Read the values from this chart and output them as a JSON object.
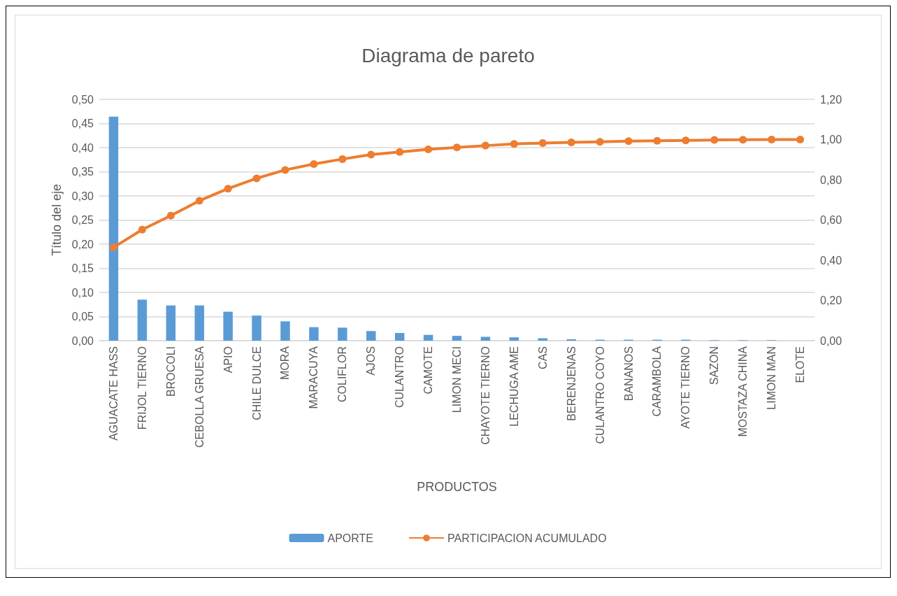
{
  "chart_data": {
    "type": "bar",
    "title": "Diagrama de pareto",
    "xlabel": "PRODUCTOS",
    "ylabel": "Título del eje",
    "categories": [
      "AGUACATE HASS",
      "FRIJOL TIERNO",
      "BROCOLI",
      "CEBOLLA GRUESA",
      "APIO",
      "CHILE DULCE",
      "MORA",
      "MARACUYA",
      "COLIFLOR",
      "AJOS",
      "CULANTRO",
      "CAMOTE",
      "LIMON MECI",
      "CHAYOTE TIERNO",
      "LECHUGA AME",
      "CAS",
      "BERENJENAS",
      "CULANTRO COYO",
      "BANANOS",
      "CARAMBOLA",
      "AYOTE TIERNO",
      "SAZON",
      "MOSTAZA CHINA",
      "LIMON MAN",
      "ELOTE"
    ],
    "series": [
      {
        "name": "APORTE",
        "color": "#5b9bd5",
        "values": [
          0.464,
          0.085,
          0.073,
          0.073,
          0.06,
          0.052,
          0.04,
          0.028,
          0.027,
          0.02,
          0.016,
          0.012,
          0.01,
          0.008,
          0.007,
          0.005,
          0.003,
          0.002,
          0.002,
          0.002,
          0.002,
          0.001,
          0.001,
          0.001,
          0
        ]
      },
      {
        "name": "PARTICIPACION ACUMULADO",
        "type": "line",
        "axis": "y2",
        "color": "#ed7d31",
        "marker": "circle",
        "values": [
          0.464,
          0.552,
          0.622,
          0.696,
          0.756,
          0.807,
          0.849,
          0.878,
          0.903,
          0.925,
          0.938,
          0.951,
          0.961,
          0.97,
          0.978,
          0.983,
          0.986,
          0.989,
          0.992,
          0.994,
          0.996,
          0.998,
          0.999,
          1.0,
          1.0
        ]
      }
    ],
    "ylim": [
      0,
      0.5
    ],
    "yticks": [
      {
        "value": 0,
        "label": "0,00"
      },
      {
        "value": 0.05,
        "label": "0,05"
      },
      {
        "value": 0.1,
        "label": "0,10"
      },
      {
        "value": 0.15,
        "label": "0,15"
      },
      {
        "value": 0.2,
        "label": "0,20"
      },
      {
        "value": 0.25,
        "label": "0,25"
      },
      {
        "value": 0.3,
        "label": "0,30"
      },
      {
        "value": 0.35,
        "label": "0,35"
      },
      {
        "value": 0.4,
        "label": "0,40"
      },
      {
        "value": 0.45,
        "label": "0,45"
      },
      {
        "value": 0.5,
        "label": "0,50"
      }
    ],
    "y2lim": [
      0,
      1.2
    ],
    "y2ticks": [
      {
        "value": 0,
        "label": "0,00"
      },
      {
        "value": 0.2,
        "label": "0,20"
      },
      {
        "value": 0.4,
        "label": "0,40"
      },
      {
        "value": 0.6,
        "label": "0,60"
      },
      {
        "value": 0.8,
        "label": "0,80"
      },
      {
        "value": 1.0,
        "label": "1,00"
      },
      {
        "value": 1.2,
        "label": "1,20"
      }
    ],
    "grid": "y",
    "legend": "bottom"
  }
}
